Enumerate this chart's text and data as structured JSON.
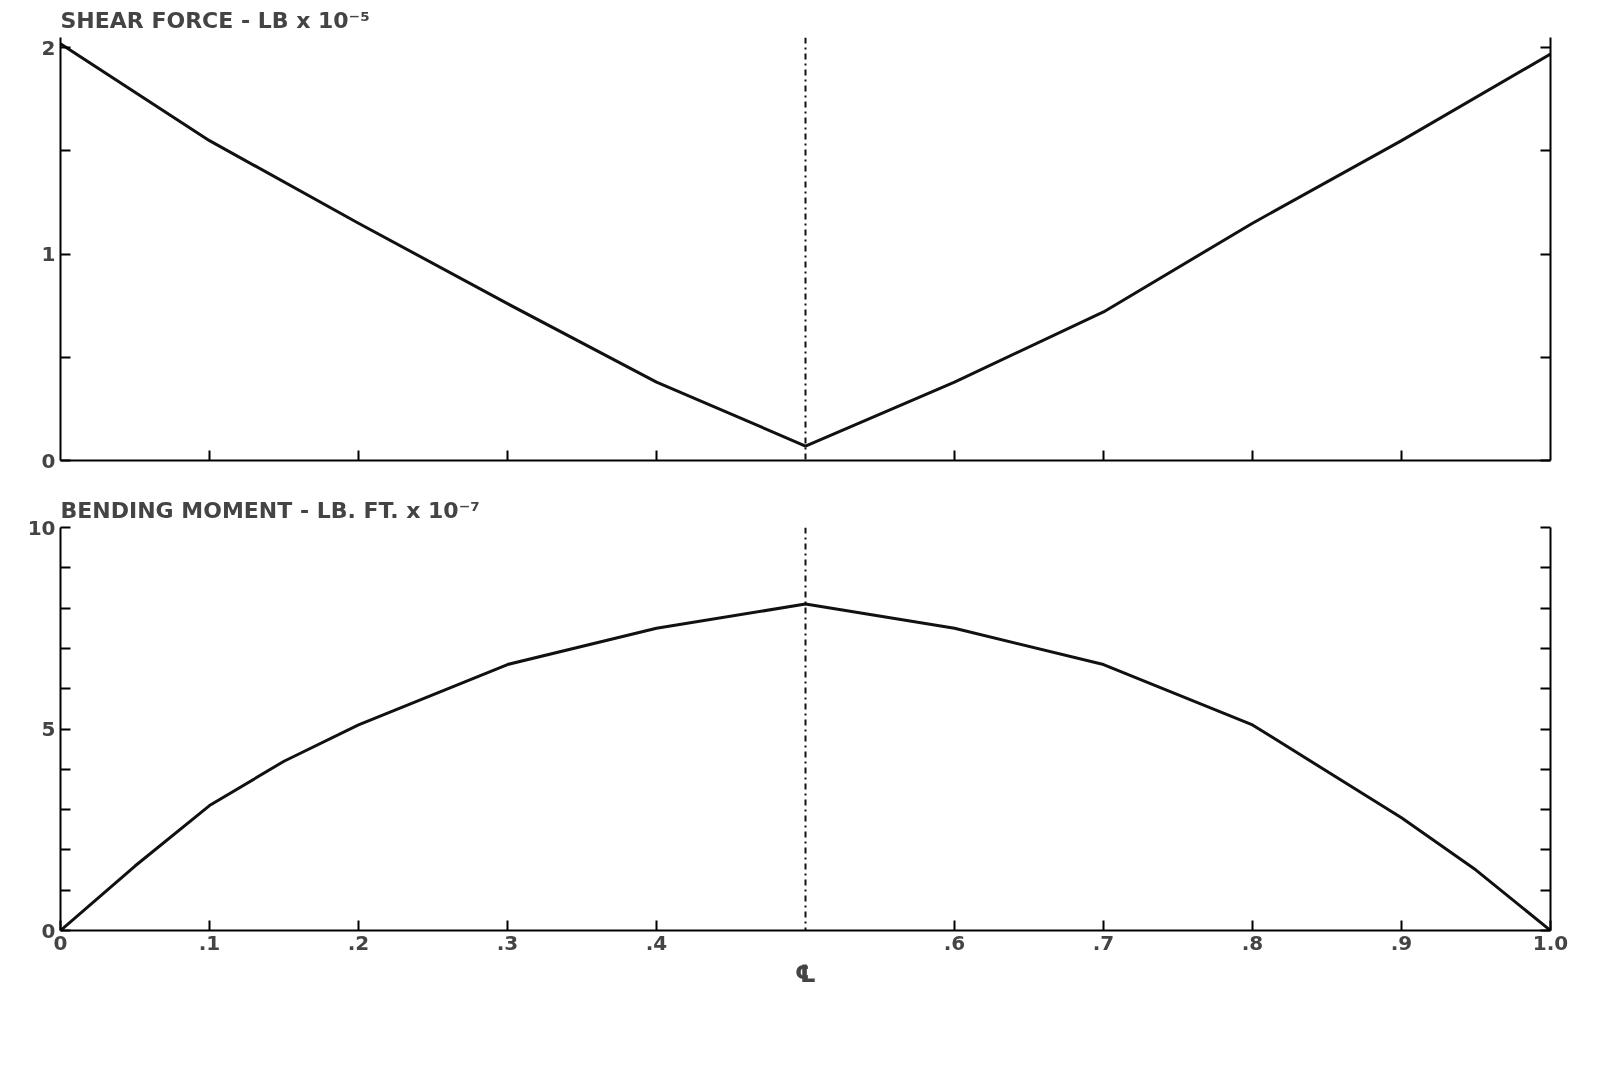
{
  "chart_data": [
    {
      "type": "line",
      "title": "SHEAR   FORCE - LB x 10⁻⁵",
      "x": [
        0,
        0.1,
        0.2,
        0.3,
        0.4,
        0.5,
        0.6,
        0.7,
        0.8,
        0.9,
        1.0
      ],
      "series": [
        {
          "color": "#111111",
          "values": [
            2.02,
            1.55,
            1.15,
            0.76,
            0.38,
            0.07,
            0.38,
            0.72,
            1.15,
            1.55,
            1.97
          ]
        }
      ],
      "xlim": [
        0,
        1
      ],
      "ylim": [
        0,
        2.05
      ],
      "xticks": [
        {
          "value": 0.1,
          "label": null
        },
        {
          "value": 0.2,
          "label": null
        },
        {
          "value": 0.3,
          "label": null
        },
        {
          "value": 0.4,
          "label": null
        },
        {
          "value": 0.6,
          "label": null
        },
        {
          "value": 0.7,
          "label": null
        },
        {
          "value": 0.8,
          "label": null
        },
        {
          "value": 0.9,
          "label": null
        }
      ],
      "yticks": [
        0,
        {
          "value": 0.5,
          "label": null
        },
        1,
        {
          "value": 1.5,
          "label": null
        },
        2
      ],
      "tick_labels": "y",
      "grid": false,
      "marker": "none",
      "line_style": "solid",
      "ref_lines": [
        {
          "axis": "x",
          "value": 0.5,
          "line_style": "dashdot"
        }
      ]
    },
    {
      "type": "line",
      "title": "BENDING   MOMENT - LB. FT. x 10⁻⁷",
      "x": [
        0,
        0.05,
        0.1,
        0.15,
        0.2,
        0.3,
        0.4,
        0.5,
        0.6,
        0.7,
        0.8,
        0.9,
        0.95,
        1.0
      ],
      "series": [
        {
          "color": "#111111",
          "values": [
            0,
            1.6,
            3.1,
            4.2,
            5.1,
            6.6,
            7.5,
            8.1,
            7.5,
            6.6,
            5.1,
            2.8,
            1.5,
            0
          ]
        }
      ],
      "xlim": [
        0,
        1
      ],
      "ylim": [
        0,
        10
      ],
      "xticks": [
        0,
        {
          "value": 0.1,
          "label": ".1"
        },
        {
          "value": 0.2,
          "label": ".2"
        },
        {
          "value": 0.3,
          "label": ".3"
        },
        {
          "value": 0.4,
          "label": ".4"
        },
        {
          "value": 0.6,
          "label": ".6"
        },
        {
          "value": 0.7,
          "label": ".7"
        },
        {
          "value": 0.8,
          "label": ".8"
        },
        {
          "value": 0.9,
          "label": ".9"
        },
        {
          "value": 1.0,
          "label": "1.0"
        }
      ],
      "yticks": [
        0,
        {
          "value": 1,
          "label": null
        },
        {
          "value": 2,
          "label": null
        },
        {
          "value": 3,
          "label": null
        },
        {
          "value": 4,
          "label": null
        },
        5,
        {
          "value": 6,
          "label": null
        },
        {
          "value": 7,
          "label": null
        },
        {
          "value": 8,
          "label": null
        },
        {
          "value": 9,
          "label": null
        },
        10
      ],
      "grid": false,
      "marker": "none",
      "line_style": "solid",
      "ref_lines": [
        {
          "axis": "x",
          "value": 0.5,
          "label": "℄",
          "line_style": "dashdot"
        }
      ]
    }
  ]
}
